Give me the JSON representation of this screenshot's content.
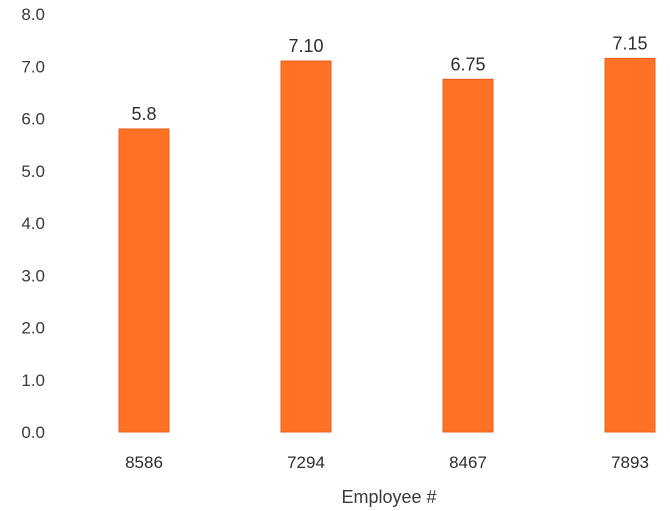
{
  "chart_data": {
    "type": "bar",
    "title": "",
    "xlabel": "Employee #",
    "ylabel": "",
    "categories": [
      "8586",
      "7294",
      "8467",
      "7893"
    ],
    "values": [
      5.8,
      7.1,
      6.75,
      7.15
    ],
    "value_labels": [
      "5.8",
      "7.10",
      "6.75",
      "7.15"
    ],
    "ylim": [
      0,
      8
    ],
    "yticks": [
      "0.0",
      "1.0",
      "2.0",
      "3.0",
      "4.0",
      "5.0",
      "6.0",
      "7.0",
      "8.0"
    ],
    "grid": false,
    "legend": "none",
    "bar_color": "#ff7226",
    "bar_edge_color": "#e85f18"
  }
}
